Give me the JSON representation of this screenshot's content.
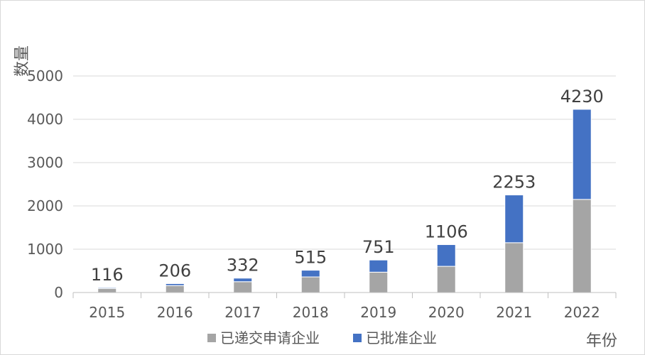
{
  "chart_data": {
    "type": "bar",
    "stacked": true,
    "categories": [
      "2015",
      "2016",
      "2017",
      "2018",
      "2019",
      "2020",
      "2021",
      "2022"
    ],
    "series": [
      {
        "name": "已递交申请企业",
        "values": [
          95,
          160,
          250,
          360,
          470,
          605,
          1150,
          2150
        ],
        "color": "#a5a5a5"
      },
      {
        "name": "已批准企业",
        "values": [
          21,
          46,
          82,
          155,
          281,
          501,
          1103,
          2080
        ],
        "color": "#4472c4"
      }
    ],
    "totals": [
      116,
      206,
      332,
      515,
      751,
      1106,
      2253,
      4230
    ],
    "ylabel": "数量",
    "xlabel": "年份",
    "ylim": [
      0,
      5000
    ],
    "yticks": [
      0,
      1000,
      2000,
      3000,
      4000,
      5000
    ],
    "grid": true,
    "legend_position": "bottom"
  }
}
